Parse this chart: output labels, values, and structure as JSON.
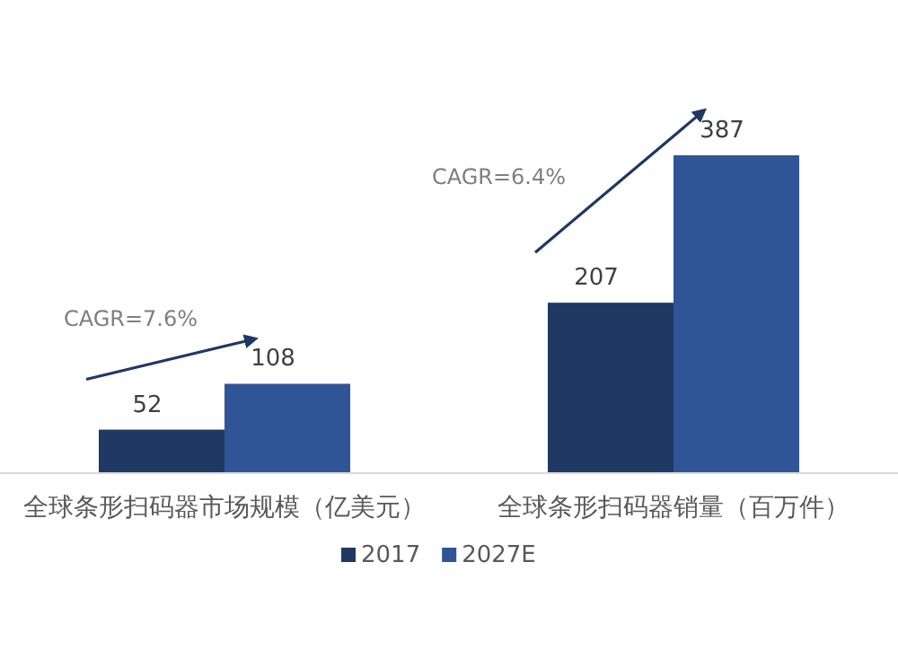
{
  "chart_data": {
    "type": "bar",
    "categories": [
      "全球条形扫码器市场规模（亿美元）",
      "全球条形扫码器销量（百万件）"
    ],
    "series": [
      {
        "name": "2017",
        "color": "#1f3864",
        "values": [
          52,
          207
        ]
      },
      {
        "name": "2027E",
        "color": "#2f5597",
        "values": [
          108,
          387
        ]
      }
    ],
    "data_labels": true,
    "annotations": [
      "CAGR=7.6%",
      "CAGR=6.4%"
    ],
    "legend": "bottom"
  }
}
